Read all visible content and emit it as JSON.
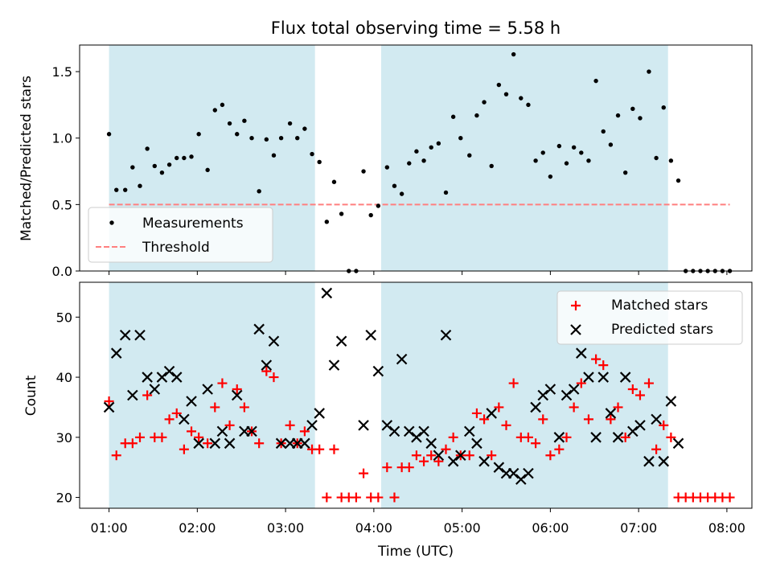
{
  "chart_data": [
    {
      "type": "scatter",
      "title": "Flux total observing time = 5.58 h",
      "xlabel": "",
      "ylabel": "Matched/Predicted stars",
      "xlim": [
        "00:40",
        "08:17"
      ],
      "ylim": [
        0,
        1.7
      ],
      "y_ticks": [
        "0.0",
        "0.5",
        "1.0",
        "1.5"
      ],
      "x_ticks": [
        "01:00",
        "02:00",
        "03:00",
        "04:00",
        "05:00",
        "06:00",
        "07:00",
        "08:00"
      ],
      "shaded_intervals": [
        [
          "01:00",
          "03:20"
        ],
        [
          "04:05",
          "07:20"
        ]
      ],
      "shade_color": "#add8e6",
      "legend_position": "lower-left",
      "series": [
        {
          "name": "Measurements",
          "color": "#000000",
          "marker": "dot",
          "points": [
            [
              "01:00",
              1.03
            ],
            [
              "01:05",
              0.61
            ],
            [
              "01:11",
              0.61
            ],
            [
              "01:16",
              0.78
            ],
            [
              "01:21",
              0.64
            ],
            [
              "01:26",
              0.92
            ],
            [
              "01:31",
              0.79
            ],
            [
              "01:36",
              0.74
            ],
            [
              "01:41",
              0.8
            ],
            [
              "01:46",
              0.85
            ],
            [
              "01:51",
              0.85
            ],
            [
              "01:56",
              0.86
            ],
            [
              "02:01",
              1.03
            ],
            [
              "02:07",
              0.76
            ],
            [
              "02:12",
              1.21
            ],
            [
              "02:17",
              1.25
            ],
            [
              "02:22",
              1.11
            ],
            [
              "02:27",
              1.03
            ],
            [
              "02:32",
              1.13
            ],
            [
              "02:37",
              1.0
            ],
            [
              "02:42",
              0.6
            ],
            [
              "02:47",
              0.99
            ],
            [
              "02:52",
              0.87
            ],
            [
              "02:57",
              1.0
            ],
            [
              "03:03",
              1.11
            ],
            [
              "03:08",
              1.0
            ],
            [
              "03:13",
              1.07
            ],
            [
              "03:18",
              0.88
            ],
            [
              "03:23",
              0.82
            ],
            [
              "03:28",
              0.37
            ],
            [
              "03:33",
              0.67
            ],
            [
              "03:38",
              0.43
            ],
            [
              "03:43",
              0.0
            ],
            [
              "03:48",
              0.0
            ],
            [
              "03:53",
              0.75
            ],
            [
              "03:58",
              0.42
            ],
            [
              "04:03",
              0.49
            ],
            [
              "04:09",
              0.78
            ],
            [
              "04:14",
              0.64
            ],
            [
              "04:19",
              0.58
            ],
            [
              "04:24",
              0.81
            ],
            [
              "04:29",
              0.9
            ],
            [
              "04:34",
              0.83
            ],
            [
              "04:39",
              0.93
            ],
            [
              "04:44",
              0.96
            ],
            [
              "04:49",
              0.59
            ],
            [
              "04:54",
              1.16
            ],
            [
              "04:59",
              1.0
            ],
            [
              "05:05",
              0.87
            ],
            [
              "05:10",
              1.17
            ],
            [
              "05:15",
              1.27
            ],
            [
              "05:20",
              0.79
            ],
            [
              "05:25",
              1.4
            ],
            [
              "05:30",
              1.33
            ],
            [
              "05:35",
              1.63
            ],
            [
              "05:40",
              1.3
            ],
            [
              "05:45",
              1.25
            ],
            [
              "05:50",
              0.83
            ],
            [
              "05:55",
              0.89
            ],
            [
              "06:00",
              0.71
            ],
            [
              "06:06",
              0.94
            ],
            [
              "06:11",
              0.81
            ],
            [
              "06:16",
              0.93
            ],
            [
              "06:21",
              0.89
            ],
            [
              "06:26",
              0.83
            ],
            [
              "06:31",
              1.43
            ],
            [
              "06:36",
              1.05
            ],
            [
              "06:41",
              0.95
            ],
            [
              "06:46",
              1.17
            ],
            [
              "06:51",
              0.74
            ],
            [
              "06:56",
              1.22
            ],
            [
              "07:01",
              1.15
            ],
            [
              "07:07",
              1.5
            ],
            [
              "07:12",
              0.85
            ],
            [
              "07:17",
              1.23
            ],
            [
              "07:22",
              0.83
            ],
            [
              "07:27",
              0.68
            ],
            [
              "07:32",
              0.0
            ],
            [
              "07:37",
              0.0
            ],
            [
              "07:42",
              0.0
            ],
            [
              "07:47",
              0.0
            ],
            [
              "07:52",
              0.0
            ],
            [
              "07:57",
              0.0
            ],
            [
              "08:02",
              0.0
            ]
          ]
        },
        {
          "name": "Threshold",
          "color": "#ff7f7f",
          "style": "dashed",
          "points": [
            [
              "01:00",
              0.5
            ],
            [
              "08:02",
              0.5
            ]
          ]
        }
      ]
    },
    {
      "type": "scatter",
      "title": "",
      "xlabel": "Time (UTC)",
      "ylabel": "Count",
      "xlim": [
        "00:40",
        "08:17"
      ],
      "ylim": [
        18.2,
        55.8
      ],
      "y_ticks": [
        "20",
        "30",
        "40",
        "50"
      ],
      "x_ticks": [
        "01:00",
        "02:00",
        "03:00",
        "04:00",
        "05:00",
        "06:00",
        "07:00",
        "08:00"
      ],
      "shaded_intervals": [
        [
          "01:00",
          "03:20"
        ],
        [
          "04:05",
          "07:20"
        ]
      ],
      "shade_color": "#add8e6",
      "legend_position": "upper-right",
      "x": [
        "01:00",
        "01:05",
        "01:11",
        "01:16",
        "01:21",
        "01:26",
        "01:31",
        "01:36",
        "01:41",
        "01:46",
        "01:51",
        "01:56",
        "02:01",
        "02:07",
        "02:12",
        "02:17",
        "02:22",
        "02:27",
        "02:32",
        "02:37",
        "02:42",
        "02:47",
        "02:52",
        "02:57",
        "03:03",
        "03:08",
        "03:13",
        "03:18",
        "03:23",
        "03:28",
        "03:33",
        "03:38",
        "03:43",
        "03:48",
        "03:53",
        "03:58",
        "04:03",
        "04:09",
        "04:14",
        "04:19",
        "04:24",
        "04:29",
        "04:34",
        "04:39",
        "04:44",
        "04:49",
        "04:54",
        "04:59",
        "05:05",
        "05:10",
        "05:15",
        "05:20",
        "05:25",
        "05:30",
        "05:35",
        "05:40",
        "05:45",
        "05:50",
        "05:55",
        "06:00",
        "06:06",
        "06:11",
        "06:16",
        "06:21",
        "06:26",
        "06:31",
        "06:36",
        "06:41",
        "06:46",
        "06:51",
        "06:56",
        "07:01",
        "07:07",
        "07:12",
        "07:17",
        "07:22",
        "07:27",
        "07:32",
        "07:37",
        "07:42",
        "07:47",
        "07:52",
        "07:57",
        "08:02"
      ],
      "series": [
        {
          "name": "Matched stars",
          "color": "#ff0000",
          "marker": "plus",
          "values": [
            36,
            27,
            29,
            29,
            30,
            37,
            30,
            30,
            33,
            34,
            28,
            31,
            30,
            29,
            35,
            39,
            32,
            38,
            35,
            31,
            29,
            41,
            40,
            29,
            32,
            29,
            31,
            28,
            28,
            20,
            28,
            20,
            20,
            20,
            24,
            20,
            20,
            25,
            20,
            25,
            25,
            27,
            26,
            27,
            26,
            28,
            30,
            27,
            27,
            34,
            33,
            27,
            35,
            32,
            39,
            30,
            30,
            29,
            33,
            27,
            28,
            30,
            35,
            39,
            33,
            43,
            42,
            33,
            35,
            30,
            38,
            37,
            39,
            28,
            32,
            30,
            20,
            20,
            20,
            20,
            20,
            20,
            20,
            20
          ]
        },
        {
          "name": "Predicted stars",
          "color": "#000000",
          "marker": "x",
          "values": [
            35,
            44,
            47,
            37,
            47,
            40,
            38,
            40,
            41,
            40,
            33,
            36,
            29,
            38,
            29,
            31,
            29,
            37,
            31,
            31,
            48,
            42,
            46,
            29,
            29,
            29,
            29,
            32,
            34,
            54,
            42,
            46,
            null,
            null,
            32,
            47,
            41,
            32,
            31,
            43,
            31,
            30,
            31,
            29,
            27,
            47,
            26,
            27,
            31,
            29,
            26,
            34,
            25,
            24,
            24,
            23,
            24,
            35,
            37,
            38,
            30,
            37,
            38,
            44,
            40,
            30,
            40,
            34,
            30,
            40,
            31,
            32,
            26,
            33,
            26,
            36,
            29,
            null,
            null,
            null,
            null,
            null,
            null,
            null
          ]
        }
      ]
    }
  ]
}
